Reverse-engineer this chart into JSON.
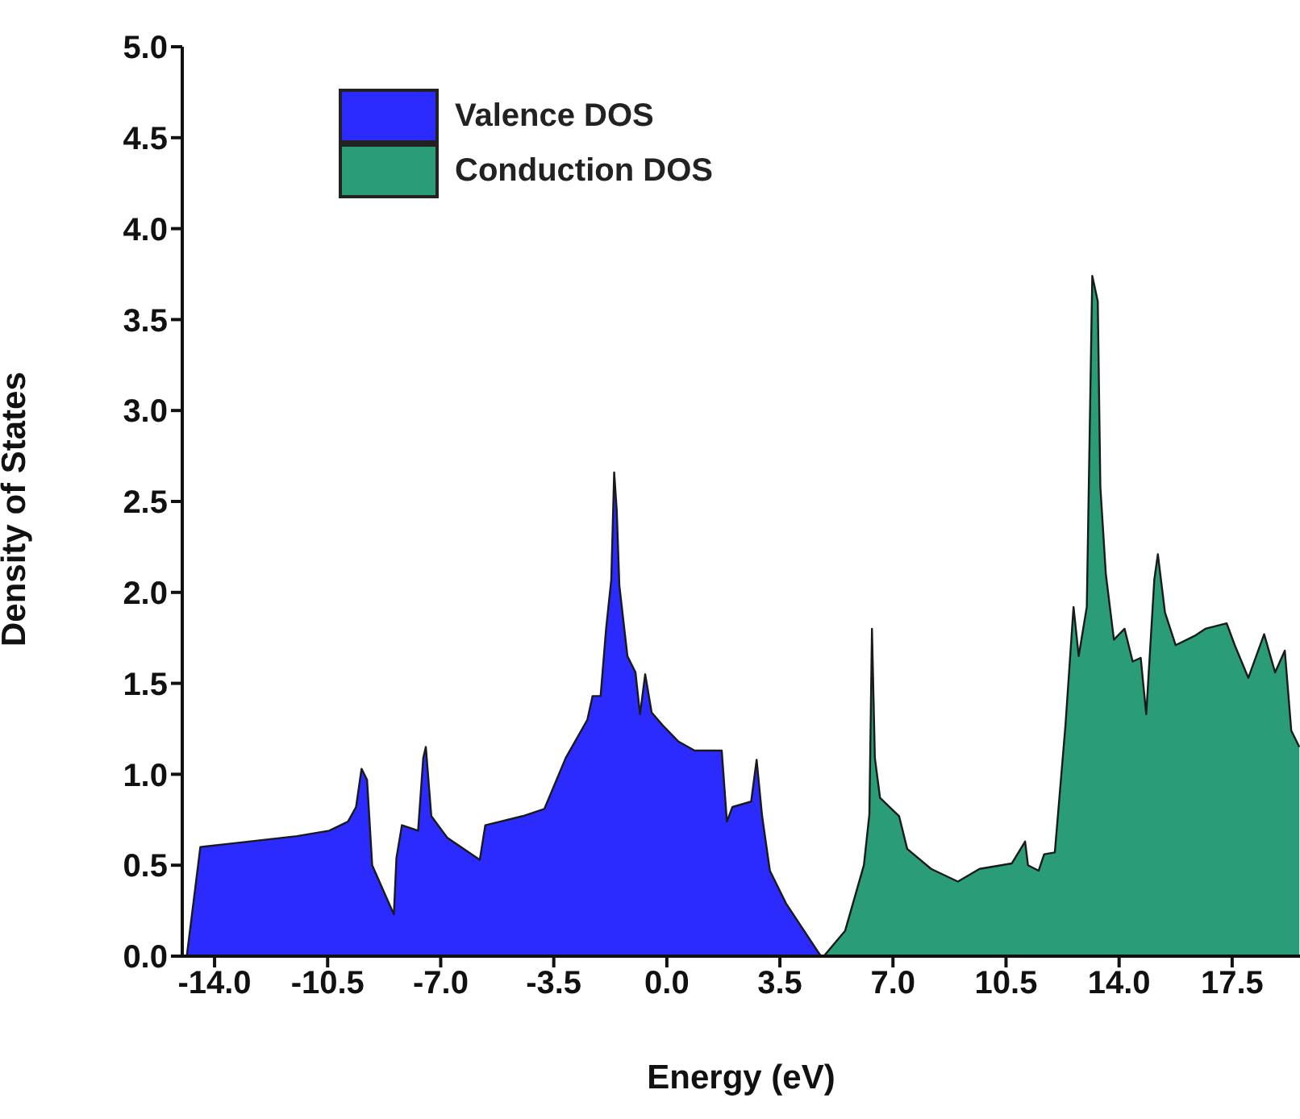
{
  "chart_data": {
    "type": "area",
    "xlabel": "Energy (eV)",
    "ylabel": "Density of States",
    "xlim": [
      -15,
      19.6
    ],
    "ylim": [
      0,
      5
    ],
    "xticks": [
      {
        "value": -14,
        "label": "-14.0"
      },
      {
        "value": -10.5,
        "label": "-10.5"
      },
      {
        "value": -7,
        "label": "-7.0"
      },
      {
        "value": -3.5,
        "label": "-3.5"
      },
      {
        "value": 0,
        "label": "0.0"
      },
      {
        "value": 3.5,
        "label": "3.5"
      },
      {
        "value": 7,
        "label": "7.0"
      },
      {
        "value": 10.5,
        "label": "10.5"
      },
      {
        "value": 14,
        "label": "14.0"
      },
      {
        "value": 17.5,
        "label": "17.5"
      }
    ],
    "yticks": [
      {
        "value": 0,
        "label": "0.0"
      },
      0.5,
      {
        "value": 1,
        "label": "1.0"
      },
      1.5,
      {
        "value": 2,
        "label": "2.0"
      },
      2.5,
      {
        "value": 3,
        "label": "3.0"
      },
      3.5,
      {
        "value": 4,
        "label": "4.0"
      },
      4.5,
      {
        "value": 5,
        "label": "5.0"
      }
    ],
    "legend": "top left",
    "grid": false,
    "series": [
      {
        "name": "Valence DOS",
        "color": "#2b2bff",
        "x": [
          -14.86,
          -14.44,
          -13.44,
          -11.45,
          -10.45,
          -9.87,
          -9.62,
          -9.45,
          -9.28,
          -9.12,
          -8.45,
          -8.37,
          -8.2,
          -7.7,
          -7.54,
          -7.46,
          -7.29,
          -6.79,
          -5.79,
          -5.62,
          -4.46,
          -3.79,
          -3.13,
          -2.46,
          -2.3,
          -2.05,
          -1.88,
          -1.72,
          -1.63,
          -1.55,
          -1.47,
          -1.22,
          -0.97,
          -0.83,
          -0.67,
          -0.47,
          -0.13,
          0.36,
          0.86,
          1.7,
          1.86,
          2.03,
          2.61,
          2.78,
          2.95,
          3.19,
          3.69,
          4.77
        ],
        "values": [
          0,
          0.6,
          0.62,
          0.66,
          0.69,
          0.74,
          0.82,
          1.03,
          0.97,
          0.5,
          0.23,
          0.54,
          0.72,
          0.69,
          1.09,
          1.15,
          0.77,
          0.65,
          0.53,
          0.72,
          0.77,
          0.81,
          1.09,
          1.3,
          1.43,
          1.43,
          1.8,
          2.07,
          2.66,
          2.45,
          2.04,
          1.65,
          1.56,
          1.33,
          1.55,
          1.34,
          1.27,
          1.18,
          1.13,
          1.13,
          0.74,
          0.82,
          0.85,
          1.08,
          0.77,
          0.47,
          0.29,
          0
        ]
      },
      {
        "name": "Conduction DOS",
        "color": "#2a9d78",
        "x": [
          4.86,
          5.52,
          6.1,
          6.27,
          6.35,
          6.44,
          6.6,
          7.19,
          7.44,
          8.18,
          9.01,
          9.68,
          10.68,
          11.09,
          11.18,
          11.51,
          11.68,
          12.01,
          12.34,
          12.59,
          12.75,
          13.0,
          13.17,
          13.34,
          13.42,
          13.59,
          13.84,
          14.17,
          14.42,
          14.67,
          14.84,
          15.09,
          15.2,
          15.42,
          15.75,
          16.33,
          16.67,
          17.33,
          17.58,
          18.0,
          18.49,
          18.83,
          19.13,
          19.33,
          19.58
        ],
        "values": [
          0,
          0.14,
          0.5,
          0.78,
          1.8,
          1.09,
          0.87,
          0.77,
          0.59,
          0.48,
          0.41,
          0.48,
          0.51,
          0.63,
          0.5,
          0.47,
          0.56,
          0.57,
          1.27,
          1.92,
          1.65,
          1.92,
          3.74,
          3.6,
          2.58,
          2.1,
          1.74,
          1.8,
          1.62,
          1.64,
          1.33,
          2.07,
          2.21,
          1.89,
          1.71,
          1.76,
          1.8,
          1.83,
          1.71,
          1.53,
          1.77,
          1.56,
          1.68,
          1.24,
          1.15
        ]
      }
    ]
  }
}
